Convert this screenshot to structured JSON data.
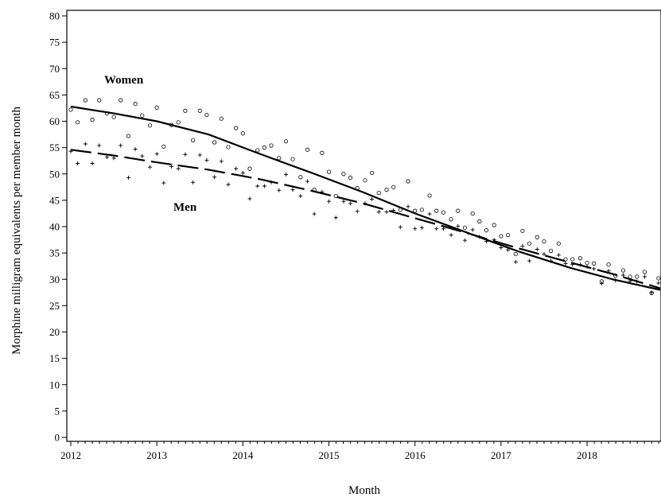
{
  "chart_data": {
    "type": "scatter",
    "xlabel": "Month",
    "ylabel": "Morphine milligram equivalents per member month",
    "xlim": [
      2012,
      2018.85
    ],
    "ylim": [
      0,
      80
    ],
    "x_ticks": [
      2012,
      2013,
      2014,
      2015,
      2016,
      2017,
      2018
    ],
    "y_ticks": [
      0,
      5,
      10,
      15,
      20,
      25,
      30,
      35,
      40,
      45,
      50,
      55,
      60,
      65,
      70,
      75,
      80
    ],
    "grid": false,
    "series": [
      {
        "name": "Women",
        "marker": "circle",
        "points": [
          [
            2012.0,
            62.2
          ],
          [
            2012.08,
            59.8
          ],
          [
            2012.17,
            64.0
          ],
          [
            2012.25,
            60.3
          ],
          [
            2012.33,
            64.0
          ],
          [
            2012.42,
            61.5
          ],
          [
            2012.5,
            60.8
          ],
          [
            2012.58,
            64.0
          ],
          [
            2012.67,
            57.2
          ],
          [
            2012.75,
            63.3
          ],
          [
            2012.83,
            61.1
          ],
          [
            2012.92,
            59.2
          ],
          [
            2013.0,
            62.6
          ],
          [
            2013.08,
            55.2
          ],
          [
            2013.17,
            59.3
          ],
          [
            2013.25,
            59.8
          ],
          [
            2013.33,
            62.0
          ],
          [
            2013.42,
            56.4
          ],
          [
            2013.5,
            62.0
          ],
          [
            2013.58,
            61.2
          ],
          [
            2013.67,
            56.0
          ],
          [
            2013.75,
            60.5
          ],
          [
            2013.83,
            55.1
          ],
          [
            2013.92,
            58.7
          ],
          [
            2014.0,
            57.7
          ],
          [
            2014.08,
            51.0
          ],
          [
            2014.17,
            54.5
          ],
          [
            2014.25,
            55.0
          ],
          [
            2014.33,
            55.4
          ],
          [
            2014.42,
            53.0
          ],
          [
            2014.5,
            56.2
          ],
          [
            2014.58,
            52.8
          ],
          [
            2014.67,
            49.4
          ],
          [
            2014.75,
            54.6
          ],
          [
            2014.83,
            47.0
          ],
          [
            2014.92,
            54.0
          ],
          [
            2015.0,
            50.4
          ],
          [
            2015.08,
            45.8
          ],
          [
            2015.17,
            50.0
          ],
          [
            2015.25,
            49.3
          ],
          [
            2015.33,
            47.3
          ],
          [
            2015.42,
            48.8
          ],
          [
            2015.5,
            50.2
          ],
          [
            2015.58,
            46.4
          ],
          [
            2015.67,
            47.0
          ],
          [
            2015.75,
            47.5
          ],
          [
            2015.83,
            43.2
          ],
          [
            2015.92,
            48.6
          ],
          [
            2016.0,
            43.0
          ],
          [
            2016.08,
            43.2
          ],
          [
            2016.17,
            45.9
          ],
          [
            2016.25,
            43.0
          ],
          [
            2016.33,
            42.7
          ],
          [
            2016.42,
            41.4
          ],
          [
            2016.5,
            43.0
          ],
          [
            2016.58,
            39.8
          ],
          [
            2016.67,
            42.5
          ],
          [
            2016.75,
            41.0
          ],
          [
            2016.83,
            39.3
          ],
          [
            2016.92,
            40.3
          ],
          [
            2017.0,
            38.2
          ],
          [
            2017.08,
            38.4
          ],
          [
            2017.17,
            34.8
          ],
          [
            2017.25,
            39.2
          ],
          [
            2017.33,
            36.8
          ],
          [
            2017.42,
            38.0
          ],
          [
            2017.5,
            37.2
          ],
          [
            2017.58,
            35.4
          ],
          [
            2017.67,
            36.8
          ],
          [
            2017.75,
            33.8
          ],
          [
            2017.83,
            33.8
          ],
          [
            2017.92,
            34.0
          ],
          [
            2018.0,
            33.1
          ],
          [
            2018.08,
            33.0
          ],
          [
            2018.17,
            29.6
          ],
          [
            2018.25,
            32.8
          ],
          [
            2018.33,
            30.7
          ],
          [
            2018.42,
            31.7
          ],
          [
            2018.5,
            30.5
          ],
          [
            2018.58,
            30.5
          ],
          [
            2018.67,
            31.4
          ],
          [
            2018.75,
            27.4
          ],
          [
            2018.83,
            30.2
          ]
        ],
        "trend": [
          [
            2012.0,
            62.8
          ],
          [
            2012.5,
            61.5
          ],
          [
            2013.0,
            60.0
          ],
          [
            2013.6,
            57.5
          ],
          [
            2014.2,
            53.8
          ],
          [
            2014.8,
            50.2
          ],
          [
            2015.4,
            46.5
          ],
          [
            2016.0,
            42.5
          ],
          [
            2016.6,
            38.9
          ],
          [
            2017.2,
            35.3
          ],
          [
            2017.8,
            32.2
          ],
          [
            2018.3,
            30.0
          ],
          [
            2018.85,
            28.0
          ]
        ]
      },
      {
        "name": "Men",
        "marker": "plus",
        "points": [
          [
            2012.0,
            54.3
          ],
          [
            2012.08,
            52.0
          ],
          [
            2012.17,
            55.7
          ],
          [
            2012.25,
            52.0
          ],
          [
            2012.33,
            55.4
          ],
          [
            2012.42,
            53.2
          ],
          [
            2012.5,
            53.0
          ],
          [
            2012.58,
            55.4
          ],
          [
            2012.67,
            49.3
          ],
          [
            2012.75,
            54.7
          ],
          [
            2012.83,
            53.4
          ],
          [
            2012.92,
            51.3
          ],
          [
            2013.0,
            53.8
          ],
          [
            2013.08,
            48.3
          ],
          [
            2013.17,
            51.4
          ],
          [
            2013.25,
            51.0
          ],
          [
            2013.33,
            53.7
          ],
          [
            2013.42,
            48.4
          ],
          [
            2013.5,
            53.6
          ],
          [
            2013.58,
            52.6
          ],
          [
            2013.67,
            49.4
          ],
          [
            2013.75,
            52.4
          ],
          [
            2013.83,
            48.0
          ],
          [
            2013.92,
            51.0
          ],
          [
            2014.0,
            50.2
          ],
          [
            2014.08,
            45.3
          ],
          [
            2014.17,
            47.7
          ],
          [
            2014.25,
            47.7
          ],
          [
            2014.33,
            48.4
          ],
          [
            2014.42,
            46.9
          ],
          [
            2014.5,
            49.9
          ],
          [
            2014.58,
            47.0
          ],
          [
            2014.67,
            45.8
          ],
          [
            2014.75,
            48.6
          ],
          [
            2014.83,
            42.4
          ],
          [
            2014.92,
            46.6
          ],
          [
            2015.0,
            44.8
          ],
          [
            2015.08,
            41.7
          ],
          [
            2015.17,
            44.8
          ],
          [
            2015.25,
            44.4
          ],
          [
            2015.33,
            42.9
          ],
          [
            2015.42,
            44.4
          ],
          [
            2015.5,
            45.2
          ],
          [
            2015.58,
            42.8
          ],
          [
            2015.67,
            42.8
          ],
          [
            2015.75,
            43.1
          ],
          [
            2015.83,
            39.9
          ],
          [
            2015.92,
            43.8
          ],
          [
            2016.0,
            39.6
          ],
          [
            2016.08,
            39.8
          ],
          [
            2016.17,
            42.4
          ],
          [
            2016.25,
            39.6
          ],
          [
            2016.33,
            39.6
          ],
          [
            2016.42,
            38.4
          ],
          [
            2016.5,
            40.1
          ],
          [
            2016.58,
            37.4
          ],
          [
            2016.67,
            39.4
          ],
          [
            2016.75,
            38.1
          ],
          [
            2016.83,
            37.2
          ],
          [
            2016.92,
            37.5
          ],
          [
            2017.0,
            36.0
          ],
          [
            2017.08,
            35.6
          ],
          [
            2017.17,
            33.3
          ],
          [
            2017.25,
            36.3
          ],
          [
            2017.33,
            33.5
          ],
          [
            2017.42,
            35.7
          ],
          [
            2017.5,
            34.8
          ],
          [
            2017.58,
            33.5
          ],
          [
            2017.67,
            34.6
          ],
          [
            2017.75,
            33.0
          ],
          [
            2017.83,
            32.8
          ],
          [
            2017.92,
            32.8
          ],
          [
            2018.0,
            32.4
          ],
          [
            2018.08,
            32.0
          ],
          [
            2018.17,
            29.2
          ],
          [
            2018.25,
            31.6
          ],
          [
            2018.33,
            29.8
          ],
          [
            2018.42,
            30.8
          ],
          [
            2018.5,
            29.7
          ],
          [
            2018.58,
            29.6
          ],
          [
            2018.67,
            30.5
          ],
          [
            2018.75,
            27.5
          ],
          [
            2018.83,
            29.3
          ]
        ],
        "trend": [
          [
            2012.0,
            54.6
          ],
          [
            2012.5,
            53.5
          ],
          [
            2013.0,
            52.2
          ],
          [
            2013.6,
            50.8
          ],
          [
            2014.2,
            49.0
          ],
          [
            2014.8,
            46.8
          ],
          [
            2015.4,
            44.4
          ],
          [
            2016.0,
            41.6
          ],
          [
            2016.6,
            38.8
          ],
          [
            2017.2,
            35.9
          ],
          [
            2017.8,
            33.2
          ],
          [
            2018.3,
            31.0
          ],
          [
            2018.85,
            28.3
          ]
        ]
      }
    ]
  }
}
